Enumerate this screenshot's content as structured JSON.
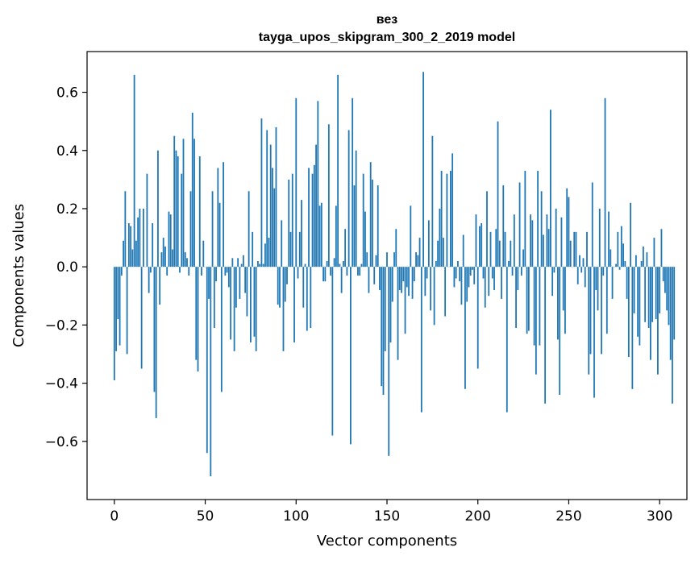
{
  "chart_data": {
    "type": "bar",
    "title_lines": [
      "вез",
      "tayga_upos_skipgram_300_2_2019 model"
    ],
    "xlabel": "Vector components",
    "ylabel": "Components values",
    "xlim": [
      -15,
      315
    ],
    "ylim": [
      -0.8,
      0.74
    ],
    "xticks": [
      0,
      50,
      100,
      150,
      200,
      250,
      300
    ],
    "xtick_labels": [
      "0",
      "50",
      "100",
      "150",
      "200",
      "250",
      "300"
    ],
    "yticks": [
      -0.6,
      -0.4,
      -0.2,
      0.0,
      0.2,
      0.4,
      0.6
    ],
    "ytick_labels": [
      "−0.6",
      "−0.4",
      "−0.2",
      "0.0",
      "0.2",
      "0.4",
      "0.6"
    ],
    "bar_color": "#1f77b4",
    "series": [
      {
        "name": "values",
        "values": [
          -0.39,
          -0.29,
          -0.18,
          -0.27,
          -0.03,
          0.09,
          0.26,
          -0.3,
          0.15,
          0.14,
          0.06,
          0.66,
          0.09,
          0.17,
          0.2,
          -0.35,
          0.2,
          0.0,
          0.32,
          -0.09,
          -0.02,
          0.15,
          -0.43,
          -0.52,
          0.4,
          -0.13,
          0.05,
          0.1,
          0.07,
          -0.03,
          0.19,
          0.18,
          0.06,
          0.45,
          0.4,
          0.38,
          -0.02,
          0.32,
          0.44,
          0.05,
          0.03,
          -0.03,
          0.26,
          0.53,
          0.44,
          -0.32,
          -0.36,
          0.38,
          -0.03,
          0.09,
          0.0,
          -0.64,
          -0.11,
          -0.72,
          0.26,
          -0.21,
          -0.05,
          0.34,
          0.22,
          -0.43,
          0.36,
          -0.03,
          -0.02,
          -0.07,
          -0.25,
          0.03,
          -0.29,
          -0.14,
          0.03,
          -0.11,
          0.01,
          0.04,
          -0.09,
          -0.17,
          0.26,
          -0.26,
          0.12,
          -0.24,
          -0.29,
          0.02,
          0.01,
          0.51,
          0.01,
          0.08,
          0.47,
          0.1,
          0.42,
          0.34,
          0.27,
          0.48,
          -0.13,
          -0.14,
          0.16,
          -0.29,
          -0.12,
          -0.06,
          0.3,
          0.12,
          0.32,
          -0.26,
          0.58,
          -0.04,
          0.12,
          0.23,
          -0.14,
          0.01,
          -0.22,
          0.34,
          -0.21,
          0.32,
          0.35,
          0.42,
          0.57,
          0.21,
          0.22,
          -0.05,
          -0.05,
          0.02,
          0.49,
          -0.03,
          -0.58,
          0.03,
          0.21,
          0.66,
          0.01,
          -0.09,
          0.02,
          0.13,
          -0.03,
          0.47,
          -0.61,
          0.58,
          0.28,
          0.4,
          -0.03,
          -0.03,
          0.01,
          0.32,
          0.19,
          0.05,
          -0.09,
          0.36,
          0.3,
          -0.06,
          0.04,
          0.28,
          -0.08,
          -0.41,
          -0.44,
          -0.29,
          0.05,
          -0.65,
          -0.26,
          -0.12,
          0.05,
          0.13,
          -0.32,
          -0.08,
          -0.09,
          -0.05,
          -0.23,
          -0.07,
          -0.1,
          0.21,
          -0.11,
          -0.05,
          0.05,
          0.04,
          0.1,
          -0.5,
          0.67,
          -0.1,
          -0.04,
          0.16,
          -0.15,
          0.45,
          -0.2,
          0.02,
          0.09,
          0.2,
          0.33,
          0.1,
          -0.17,
          0.32,
          0.0,
          0.33,
          0.39,
          -0.07,
          -0.04,
          0.02,
          -0.05,
          -0.13,
          0.11,
          -0.42,
          -0.12,
          -0.07,
          -0.03,
          -0.01,
          -0.06,
          0.18,
          -0.35,
          0.14,
          0.15,
          -0.04,
          -0.14,
          0.26,
          -0.1,
          0.12,
          -0.04,
          -0.08,
          0.13,
          0.5,
          0.09,
          -0.11,
          0.28,
          0.12,
          -0.5,
          0.02,
          0.09,
          -0.03,
          0.18,
          -0.21,
          -0.08,
          0.29,
          -0.03,
          0.06,
          0.33,
          -0.23,
          -0.22,
          0.18,
          0.16,
          -0.27,
          -0.37,
          0.33,
          -0.27,
          0.26,
          0.11,
          -0.47,
          0.18,
          0.13,
          0.54,
          -0.1,
          -0.02,
          0.2,
          -0.25,
          -0.44,
          0.17,
          -0.15,
          -0.23,
          0.27,
          0.24,
          0.09,
          0.0,
          0.12,
          0.12,
          -0.06,
          0.04,
          -0.02,
          0.03,
          -0.07,
          0.12,
          -0.37,
          -0.3,
          0.29,
          -0.45,
          -0.08,
          -0.15,
          0.2,
          -0.3,
          -0.03,
          0.58,
          -0.23,
          0.19,
          0.06,
          -0.11,
          0.0,
          0.01,
          0.12,
          -0.01,
          0.14,
          0.08,
          0.02,
          -0.11,
          -0.31,
          0.22,
          -0.42,
          -0.16,
          0.04,
          -0.24,
          -0.27,
          0.02,
          0.07,
          -0.19,
          0.05,
          -0.21,
          -0.32,
          -0.19,
          0.1,
          -0.18,
          -0.37,
          -0.16,
          0.13,
          -0.05,
          -0.09,
          -0.15,
          -0.2,
          -0.32,
          -0.47,
          -0.25
        ]
      }
    ]
  }
}
